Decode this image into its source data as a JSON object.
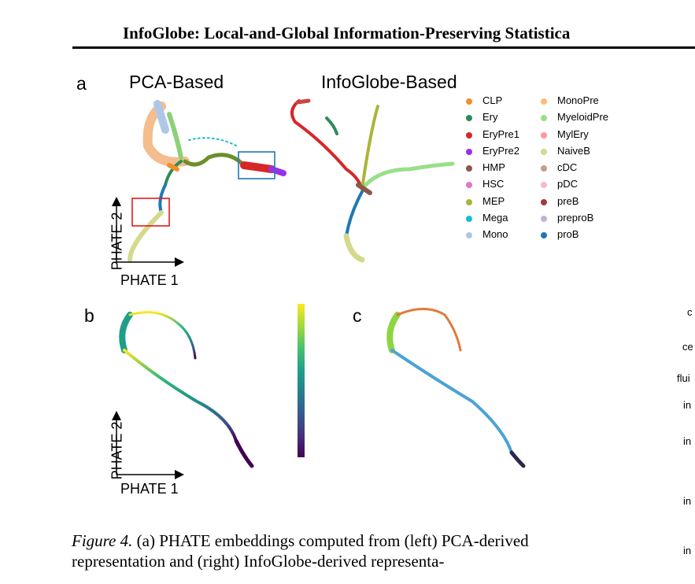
{
  "header": {
    "title": "InfoGlobe: Local-and-Global Information-Preserving Statistica"
  },
  "figure": {
    "panel_a": {
      "letter": "a",
      "title_left": "PCA-Based",
      "title_right": "InfoGlobe-Based"
    },
    "panel_b": {
      "letter": "b"
    },
    "panel_c": {
      "letter": "c"
    },
    "axes": {
      "x_label": "PHATE 1",
      "y_label": "PHATE 2"
    },
    "legend": {
      "col1": [
        {
          "label": "CLP",
          "color": "#f28e2b"
        },
        {
          "label": "Ery",
          "color": "#2e8b57"
        },
        {
          "label": "EryPre1",
          "color": "#d62728"
        },
        {
          "label": "EryPre2",
          "color": "#9b30e8"
        },
        {
          "label": "HMP",
          "color": "#8c564b"
        },
        {
          "label": "HSC",
          "color": "#e377c2"
        },
        {
          "label": "MEP",
          "color": "#aab538"
        },
        {
          "label": "Mega",
          "color": "#17becf"
        },
        {
          "label": "Mono",
          "color": "#aec7e8"
        }
      ],
      "col2": [
        {
          "label": "MonoPre",
          "color": "#ffbb78"
        },
        {
          "label": "MyeloidPre",
          "color": "#98df8a"
        },
        {
          "label": "MylEry",
          "color": "#ff9896"
        },
        {
          "label": "NaiveB",
          "color": "#d4d98e"
        },
        {
          "label": "cDC",
          "color": "#c49c94"
        },
        {
          "label": "pDC",
          "color": "#f7b6d2"
        },
        {
          "label": "preB",
          "color": "#a03a3a"
        },
        {
          "label": "preproB",
          "color": "#c5b0d5"
        },
        {
          "label": "proB",
          "color": "#1f77b4"
        }
      ]
    },
    "right_edge": [
      "c",
      "ce",
      "flui",
      "in",
      "in",
      "in",
      "in"
    ]
  },
  "caption": {
    "label": "Figure 4.",
    "text": "(a) PHATE embeddings computed from (left) PCA-derived representation and (right) InfoGlobe-derived representa-"
  }
}
